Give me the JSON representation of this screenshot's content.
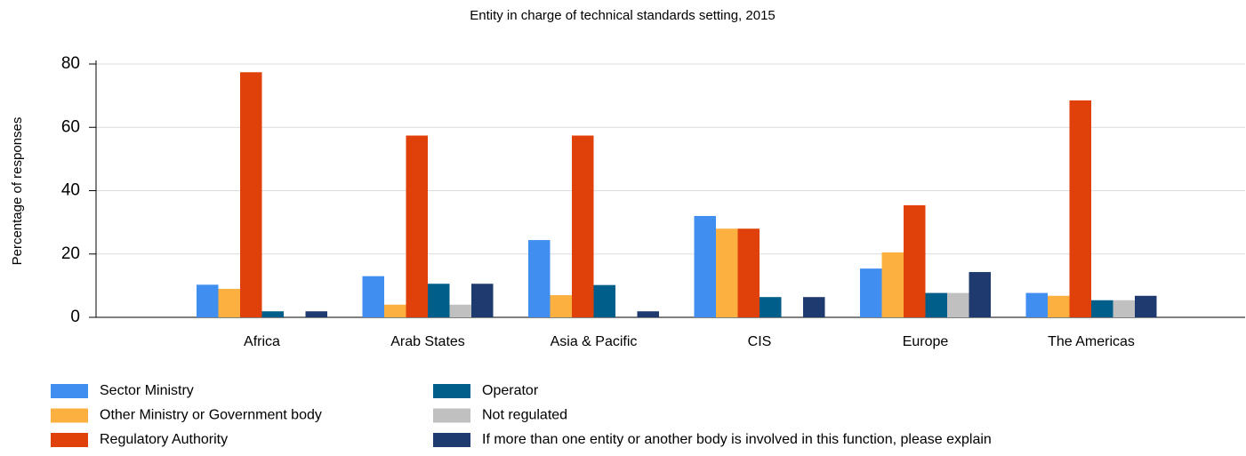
{
  "chart_data": {
    "type": "bar",
    "title": "Entity in charge of technical standards setting, 2015",
    "y_label": "Percentage of responses",
    "categories": [
      "Africa",
      "Arab States",
      "Asia & Pacific",
      "CIS",
      "Europe",
      "The Americas"
    ],
    "series": [
      {
        "name": "Sector Ministry",
        "color": "#3f8ef0",
        "values": [
          10.3,
          13,
          24.4,
          32,
          15.4,
          7.7
        ]
      },
      {
        "name": "Other Ministry or Government body",
        "color": "#fbb040",
        "values": [
          9,
          4,
          7,
          28,
          20.5,
          6.8
        ]
      },
      {
        "name": "Regulatory Authority",
        "color": "#e0400a",
        "values": [
          77.4,
          57.4,
          57.4,
          28,
          35.4,
          68.5
        ]
      },
      {
        "name": "Operator",
        "color": "#005f8a",
        "values": [
          1.9,
          10.6,
          10.2,
          6.4,
          7.7,
          5.4
        ]
      },
      {
        "name": "Not regulated",
        "color": "#c0c0c0",
        "values": [
          0,
          4,
          0,
          0,
          7.7,
          5.4
        ]
      },
      {
        "name": "If more than one entity or another body is involved in this function, please explain",
        "color": "#1f3a6e",
        "values": [
          1.9,
          10.6,
          1.9,
          6.4,
          14.3,
          6.8
        ]
      }
    ],
    "ylim": [
      0,
      80
    ],
    "yticks": [
      0,
      20,
      40,
      60,
      80
    ],
    "grid": true
  }
}
